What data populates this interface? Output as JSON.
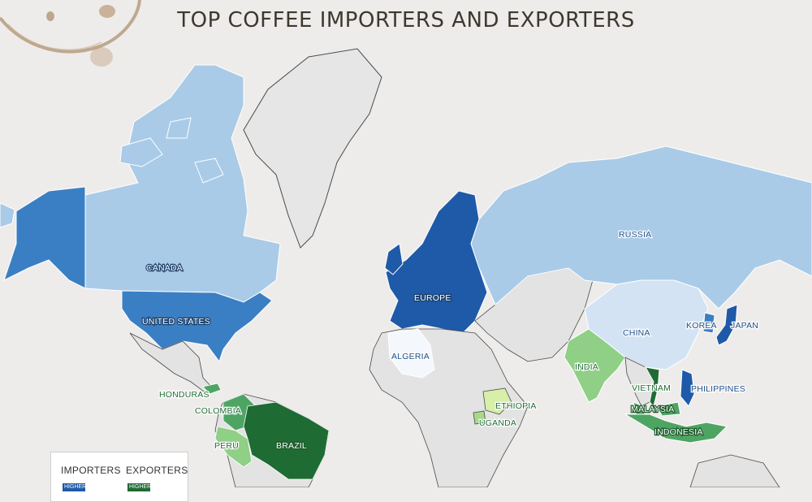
{
  "title": "TOP COFFEE IMPORTERS AND EXPORTERS",
  "colors": {
    "background": "#eeecea",
    "land_other": "#e3e3e3",
    "importer_high": "#1e5aa8",
    "importer_mid": "#6aa4d8",
    "importer_low": "#a9cbe8",
    "importer_lowest": "#d3e3f3",
    "exporter_high": "#1f6b34",
    "exporter_mid": "#4ea563",
    "exporter_low": "#8fcf86",
    "exporter_lowest": "#d7efa8"
  },
  "countries": {
    "canada": "CANADA",
    "united_states": "UNITED STATES",
    "europe": "EUROPE",
    "russia": "RUSSIA",
    "algeria": "ALGERIA",
    "china": "CHINA",
    "korea": "KOREA",
    "japan": "JAPAN",
    "india": "INDIA",
    "vietnam": "VIETNAM",
    "philippines": "PHILIPPINES",
    "malaysia": "MALAYSIA",
    "indonesia": "INDONESIA",
    "ethiopia": "ETHIOPIA",
    "uganda": "UGANDA",
    "honduras": "HONDURAS",
    "colombia": "COLOMBIA",
    "peru": "PERU",
    "brazil": "BRAZIL"
  },
  "legend": {
    "importers_label": "IMPORTERS",
    "exporters_label": "EXPORTERS",
    "importers_scale_text": "HIGHER",
    "exporters_scale_text": "HIGHER"
  }
}
